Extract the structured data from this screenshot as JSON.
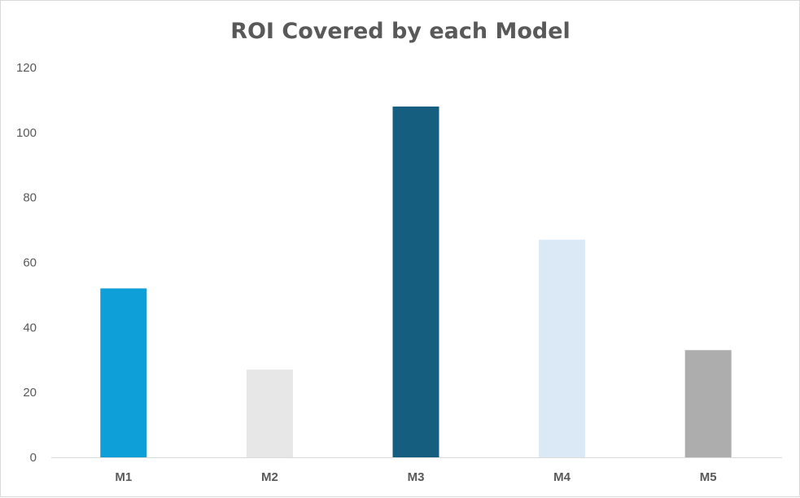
{
  "chart_data": {
    "type": "bar",
    "title": "ROI Covered by each Model",
    "xlabel": "",
    "ylabel": "",
    "categories": [
      "M1",
      "M2",
      "M3",
      "M4",
      "M5"
    ],
    "values": [
      52,
      27,
      108,
      67,
      33
    ],
    "bar_colors": [
      "#0e9fd8",
      "#e7e7e7",
      "#155e80",
      "#dbe9f6",
      "#adadad"
    ],
    "ylim": [
      0,
      120
    ],
    "yticks": [
      0,
      20,
      40,
      60,
      80,
      100,
      120
    ],
    "grid": false,
    "legend": "none"
  }
}
